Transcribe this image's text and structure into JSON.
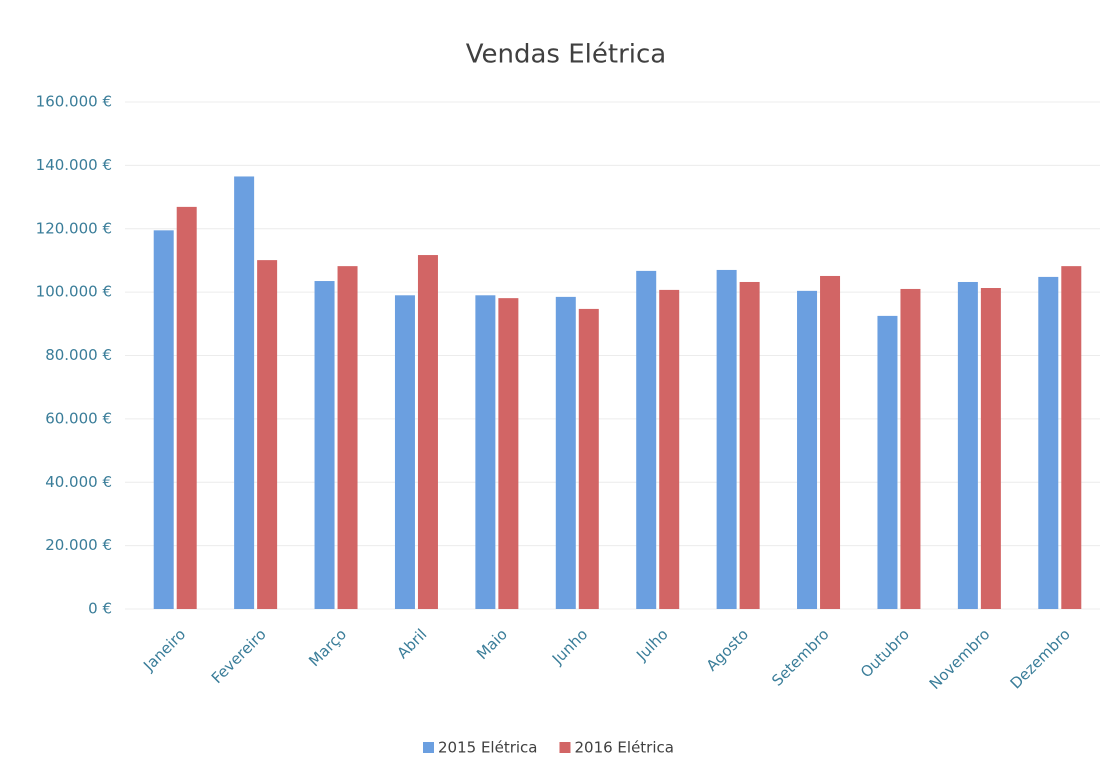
{
  "chart_data": {
    "type": "bar",
    "title": "Vendas Elétrica",
    "categories": [
      "Janeiro",
      "Fevereiro",
      "Março",
      "Abril",
      "Maio",
      "Junho",
      "Julho",
      "Agosto",
      "Setembro",
      "Outubro",
      "Novembro",
      "Dezembro"
    ],
    "series": [
      {
        "name": "2015 Elétrica",
        "color": "#6b9fe0",
        "values": [
          119500,
          136500,
          103500,
          99000,
          99000,
          98500,
          106700,
          107000,
          100400,
          92500,
          103200,
          104800
        ]
      },
      {
        "name": "2016 Elétrica",
        "color": "#d26565",
        "values": [
          126900,
          110100,
          108200,
          111700,
          98100,
          94700,
          100700,
          103200,
          105100,
          101000,
          101300,
          108200
        ]
      }
    ],
    "ylim": [
      0,
      160000
    ],
    "yticks": [
      {
        "value": 0,
        "label": "0 €"
      },
      {
        "value": 20000,
        "label": "20.000 €"
      },
      {
        "value": 40000,
        "label": "40.000 €"
      },
      {
        "value": 60000,
        "label": "60.000 €"
      },
      {
        "value": 80000,
        "label": "80.000 €"
      },
      {
        "value": 100000,
        "label": "100.000 €"
      },
      {
        "value": 120000,
        "label": "120.000 €"
      },
      {
        "value": 140000,
        "label": "140.000 €"
      },
      {
        "value": 160000,
        "label": "160.000 €"
      }
    ],
    "grid": true,
    "legend": "bottom"
  }
}
